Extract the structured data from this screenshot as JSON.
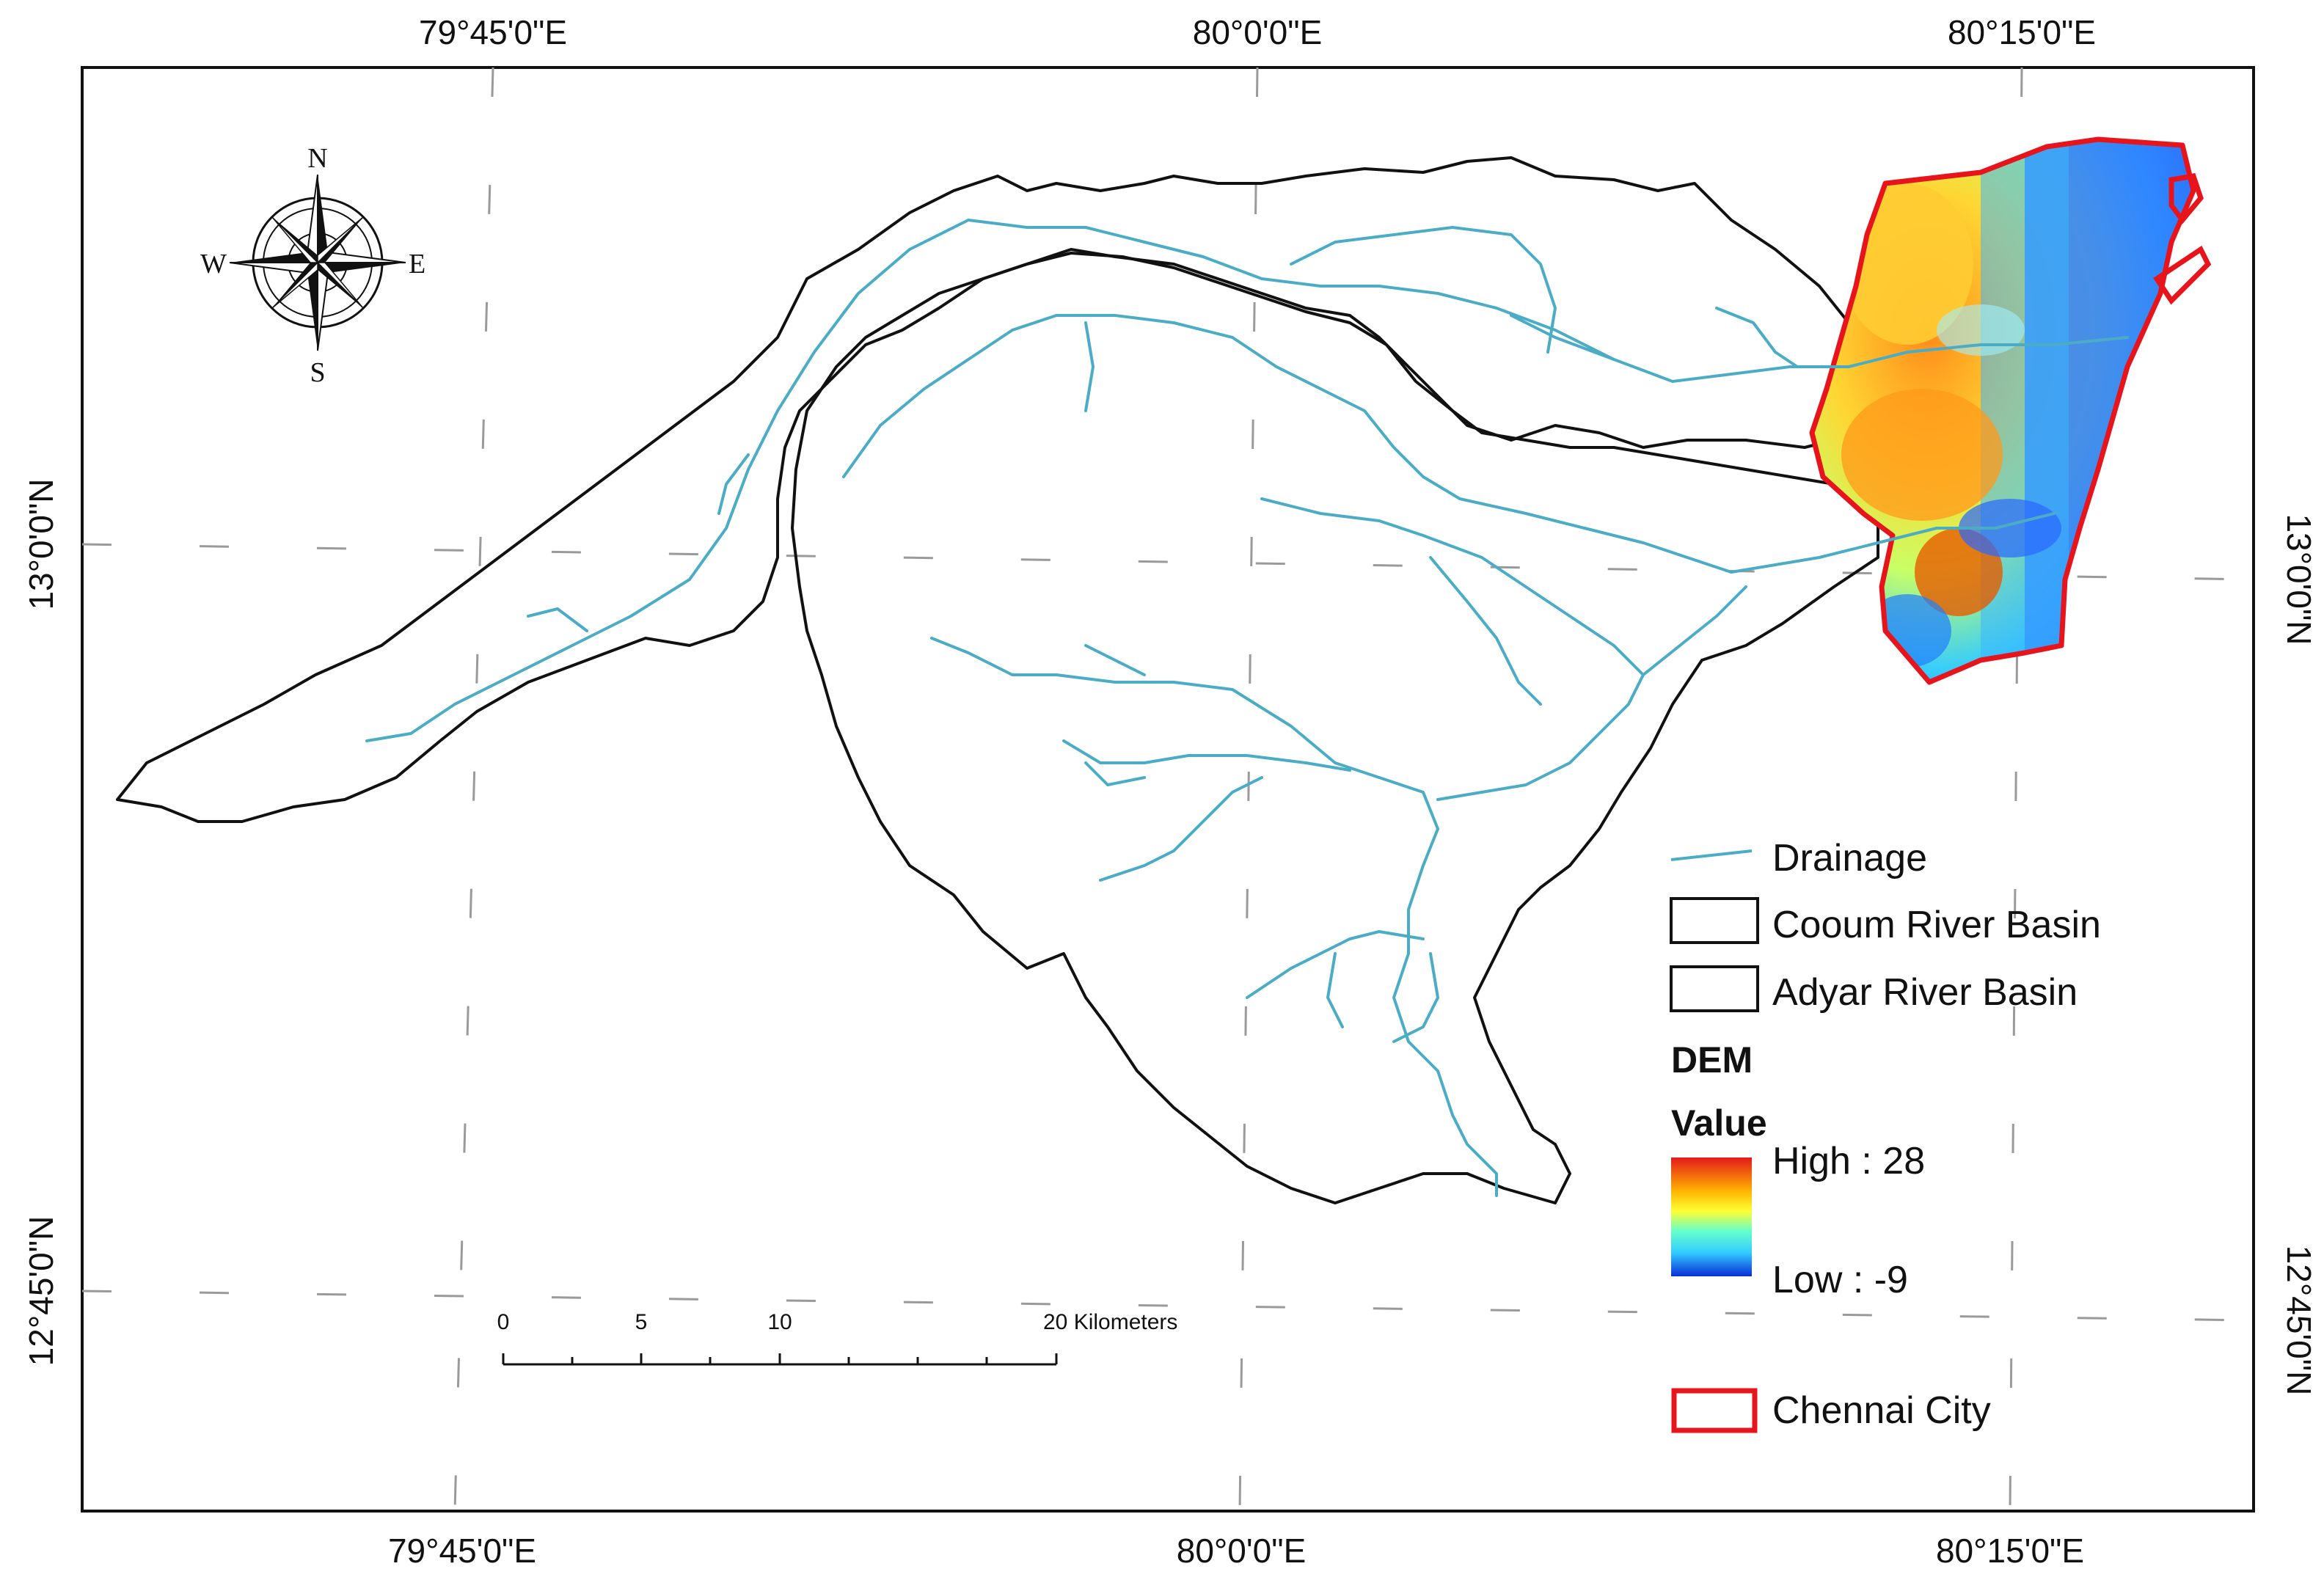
{
  "map": {
    "axes": {
      "top": [
        "79°45'0\"E",
        "80°0'0\"E",
        "80°15'0\"E"
      ],
      "bottom": [
        "79°45'0\"E",
        "80°0'0\"E",
        "80°15'0\"E"
      ],
      "left": [
        "13°0'0\"N",
        "12°45'0\"N"
      ],
      "right": [
        "13°0'0\"N",
        "12°45'0\"N"
      ]
    },
    "compass": {
      "n": "N",
      "s": "S",
      "e": "E",
      "w": "W",
      "icon": "compass-rose-icon"
    },
    "scale_bar": {
      "labels": [
        "0",
        "5",
        "10",
        "20 Kilometers"
      ]
    },
    "legend": {
      "drainage": "Drainage",
      "cooum": "Cooum River Basin",
      "adyar": "Adyar River Basin",
      "dem_title": "DEM",
      "value_title": "Value",
      "high": "High : 28",
      "low": "Low : -9",
      "chennai": "Chennai City"
    },
    "colors": {
      "drainage": "#4bacc6",
      "basin": "#111111",
      "chennai": "#e8141c",
      "dem_high": "#e31a1c",
      "dem_mid": "#ffff00",
      "dem_low": "#0a2fd6"
    }
  }
}
